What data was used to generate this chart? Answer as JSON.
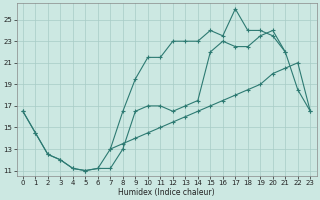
{
  "xlabel": "Humidex (Indice chaleur)",
  "bg_color": "#cce8e2",
  "grid_color": "#a8ccc6",
  "line_color": "#2d7a72",
  "x_all": [
    0,
    1,
    2,
    3,
    4,
    5,
    6,
    7,
    8,
    9,
    10,
    11,
    12,
    13,
    14,
    15,
    16,
    17,
    18,
    19,
    20,
    21,
    22,
    23
  ],
  "line_top": [
    null,
    null,
    null,
    null,
    null,
    null,
    null,
    13.0,
    16.5,
    19.5,
    21.5,
    21.5,
    23.0,
    23.0,
    23.0,
    24.0,
    23.5,
    26.0,
    24.0,
    24.0,
    23.5,
    22.0,
    null,
    null
  ],
  "line_mid": [
    16.5,
    14.5,
    12.5,
    12.0,
    11.2,
    11.0,
    11.2,
    11.2,
    13.0,
    16.5,
    17.0,
    17.0,
    16.5,
    17.0,
    17.5,
    22.0,
    23.0,
    22.5,
    22.5,
    23.5,
    24.0,
    22.0,
    18.5,
    16.5
  ],
  "line_bot": [
    16.5,
    14.5,
    12.5,
    12.0,
    11.2,
    11.0,
    11.2,
    13.0,
    13.5,
    14.0,
    14.5,
    15.0,
    15.5,
    16.0,
    16.5,
    17.0,
    17.5,
    18.0,
    18.5,
    19.0,
    20.0,
    20.5,
    21.0,
    16.5
  ],
  "ylim": [
    10.5,
    26.5
  ],
  "xlim": [
    -0.5,
    23.5
  ],
  "yticks": [
    11,
    13,
    15,
    17,
    19,
    21,
    23,
    25
  ],
  "xticks": [
    0,
    1,
    2,
    3,
    4,
    5,
    6,
    7,
    8,
    9,
    10,
    11,
    12,
    13,
    14,
    15,
    16,
    17,
    18,
    19,
    20,
    21,
    22,
    23
  ]
}
